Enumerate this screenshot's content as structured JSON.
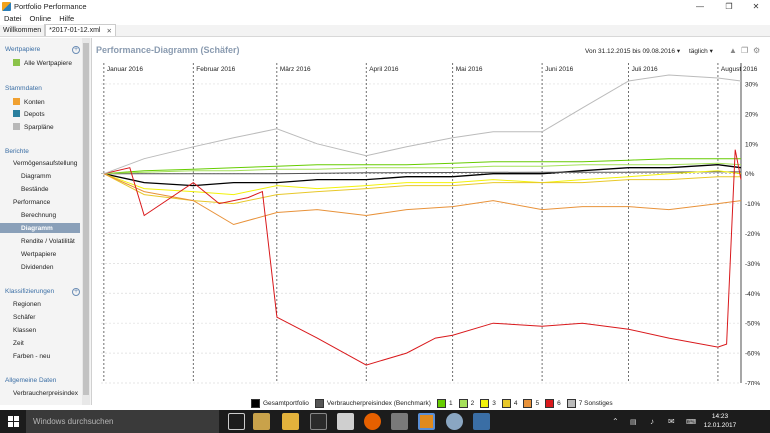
{
  "window": {
    "title": "Portfolio Performance"
  },
  "menu": [
    "Datei",
    "Online",
    "Hilfe"
  ],
  "tabs": [
    {
      "label": "Willkommen"
    },
    {
      "label": "*2017-01-12.xml"
    }
  ],
  "sidebar": {
    "wertpapiere": {
      "heading": "Wertpapiere",
      "items": [
        "Alle Wertpapiere"
      ]
    },
    "stammdaten": {
      "heading": "Stammdaten",
      "items": [
        "Konten",
        "Depots",
        "Sparpläne"
      ]
    },
    "berichte": {
      "heading": "Berichte",
      "items": [
        "Vermögensaufstellung",
        "Diagramm",
        "Bestände",
        "Performance",
        "Berechnung",
        "Diagramm",
        "Rendite / Volatilität",
        "Wertpapiere",
        "Dividenden"
      ]
    },
    "klassifizierungen": {
      "heading": "Klassifizierungen",
      "items": [
        "Regionen",
        "Schäfer",
        "Klassen",
        "Zeit",
        "Farben - neu"
      ]
    },
    "allgemeine": {
      "heading": "Allgemeine Daten",
      "items": [
        "Verbraucherpreisindex"
      ]
    }
  },
  "main": {
    "title": "Performance-Diagramm (Schäfer)",
    "period": "Von 31.12.2015 bis 09.08.2016",
    "interval": "täglich"
  },
  "chart_data": {
    "type": "line",
    "x_range": [
      "2015-12-31",
      "2016-08-09"
    ],
    "months": [
      "Januar 2016",
      "Februar 2016",
      "März 2016",
      "April 2016",
      "Mai 2016",
      "Juni 2016",
      "Juli 2016",
      "August 2016"
    ],
    "y_ticks": [
      "30%",
      "20%",
      "10%",
      "0%",
      "-10%",
      "-20%",
      "-30%",
      "-40%",
      "-50%",
      "-60%",
      "-70%"
    ],
    "ylim": [
      -70,
      35
    ],
    "grid": true,
    "legend_position": "bottom",
    "series": [
      {
        "name": "Gesamtportfolio",
        "color": "#000000",
        "x": [
          "2016-01-01",
          "2016-01-15",
          "2016-02-01",
          "2016-02-15",
          "2016-03-01",
          "2016-03-15",
          "2016-04-01",
          "2016-04-15",
          "2016-05-01",
          "2016-05-15",
          "2016-06-01",
          "2016-06-15",
          "2016-07-01",
          "2016-07-15",
          "2016-08-01",
          "2016-08-09"
        ],
        "y": [
          0,
          -3,
          -4,
          -3,
          -3,
          -2,
          -2,
          -1,
          -1,
          0,
          0,
          1,
          2,
          2,
          3,
          2
        ]
      },
      {
        "name": "Verbraucherpreisindex (Benchmark)",
        "color": "#555555",
        "x": [
          "2016-01-01",
          "2016-02-01",
          "2016-03-01",
          "2016-04-01",
          "2016-05-01",
          "2016-06-01",
          "2016-07-01",
          "2016-08-01",
          "2016-08-09"
        ],
        "y": [
          0,
          0,
          0,
          0.3,
          0.4,
          0.5,
          0.5,
          0.6,
          0.6
        ]
      },
      {
        "name": "1",
        "color": "#66cc00",
        "x": [
          "2016-01-01",
          "2016-01-15",
          "2016-02-01",
          "2016-02-15",
          "2016-03-01",
          "2016-03-15",
          "2016-04-01",
          "2016-04-15",
          "2016-05-01",
          "2016-05-15",
          "2016-06-01",
          "2016-06-15",
          "2016-07-01",
          "2016-07-15",
          "2016-08-01",
          "2016-08-09"
        ],
        "y": [
          0,
          1,
          1.5,
          2,
          2.5,
          3,
          3,
          3,
          3.5,
          4,
          4,
          4,
          4.5,
          5,
          5,
          5
        ]
      },
      {
        "name": "2",
        "color": "#a5e05a",
        "x": [
          "2016-01-01",
          "2016-01-15",
          "2016-02-01",
          "2016-02-15",
          "2016-03-01",
          "2016-03-15",
          "2016-04-01",
          "2016-04-15",
          "2016-05-01",
          "2016-05-15",
          "2016-06-01",
          "2016-06-15",
          "2016-07-01",
          "2016-07-15",
          "2016-08-01",
          "2016-08-09"
        ],
        "y": [
          0,
          0.5,
          1,
          1,
          1.5,
          1.5,
          2,
          2,
          2,
          2.5,
          2.5,
          3,
          3,
          3,
          3.5,
          3
        ]
      },
      {
        "name": "3",
        "color": "#f2f20a",
        "x": [
          "2016-01-01",
          "2016-01-15",
          "2016-02-01",
          "2016-02-15",
          "2016-03-01",
          "2016-03-15",
          "2016-04-01",
          "2016-04-15",
          "2016-05-01",
          "2016-05-15",
          "2016-06-01",
          "2016-06-15",
          "2016-07-01",
          "2016-07-15",
          "2016-08-01",
          "2016-08-09"
        ],
        "y": [
          0,
          -5,
          -6,
          -7,
          -4,
          -5,
          -4,
          -3,
          -3,
          -2,
          -3,
          -2,
          -1,
          0,
          1,
          0
        ]
      },
      {
        "name": "4",
        "color": "#e8c82a",
        "x": [
          "2016-01-01",
          "2016-01-15",
          "2016-02-01",
          "2016-02-15",
          "2016-03-01",
          "2016-03-15",
          "2016-04-01",
          "2016-04-15",
          "2016-05-01",
          "2016-05-15",
          "2016-06-01",
          "2016-06-15",
          "2016-07-01",
          "2016-07-15",
          "2016-08-01",
          "2016-08-09"
        ],
        "y": [
          0,
          -7,
          -9,
          -10,
          -7,
          -6,
          -5,
          -4,
          -4,
          -3,
          -3,
          -3,
          -2,
          -2,
          -1,
          -1
        ]
      },
      {
        "name": "5",
        "color": "#e8923a",
        "x": [
          "2016-01-01",
          "2016-01-15",
          "2016-02-01",
          "2016-02-15",
          "2016-03-01",
          "2016-03-15",
          "2016-04-01",
          "2016-04-15",
          "2016-05-01",
          "2016-05-15",
          "2016-06-01",
          "2016-06-15",
          "2016-07-01",
          "2016-07-15",
          "2016-08-01",
          "2016-08-09"
        ],
        "y": [
          0,
          -6,
          -9,
          -17,
          -13,
          -12,
          -14,
          -12,
          -11,
          -9,
          -12,
          -11,
          -11,
          -12,
          -10,
          -9
        ]
      },
      {
        "name": "6",
        "color": "#d9191c",
        "x": [
          "2016-01-01",
          "2016-01-10",
          "2016-01-15",
          "2016-02-01",
          "2016-02-10",
          "2016-02-20",
          "2016-02-25",
          "2016-03-01",
          "2016-03-15",
          "2016-04-01",
          "2016-04-15",
          "2016-04-25",
          "2016-05-01",
          "2016-05-15",
          "2016-06-01",
          "2016-06-15",
          "2016-07-01",
          "2016-07-15",
          "2016-08-01",
          "2016-08-04",
          "2016-08-07",
          "2016-08-09"
        ],
        "y": [
          0,
          2,
          -14,
          -3,
          -10,
          -8,
          -6,
          -48,
          -55,
          -64,
          -60,
          -55,
          -54,
          -50,
          -51,
          -50,
          -52,
          -55,
          -58,
          -57,
          8,
          -2
        ]
      },
      {
        "name": "7 Sonstiges",
        "color": "#bbbbbb",
        "x": [
          "2016-01-01",
          "2016-01-15",
          "2016-02-01",
          "2016-02-15",
          "2016-03-01",
          "2016-03-15",
          "2016-04-01",
          "2016-04-15",
          "2016-05-01",
          "2016-05-15",
          "2016-06-01",
          "2016-06-15",
          "2016-07-01",
          "2016-07-15",
          "2016-08-01",
          "2016-08-09"
        ],
        "y": [
          0,
          5,
          9,
          12,
          15,
          10,
          6,
          9,
          12,
          14,
          14,
          22,
          31,
          33,
          32,
          31
        ]
      }
    ]
  }
}
